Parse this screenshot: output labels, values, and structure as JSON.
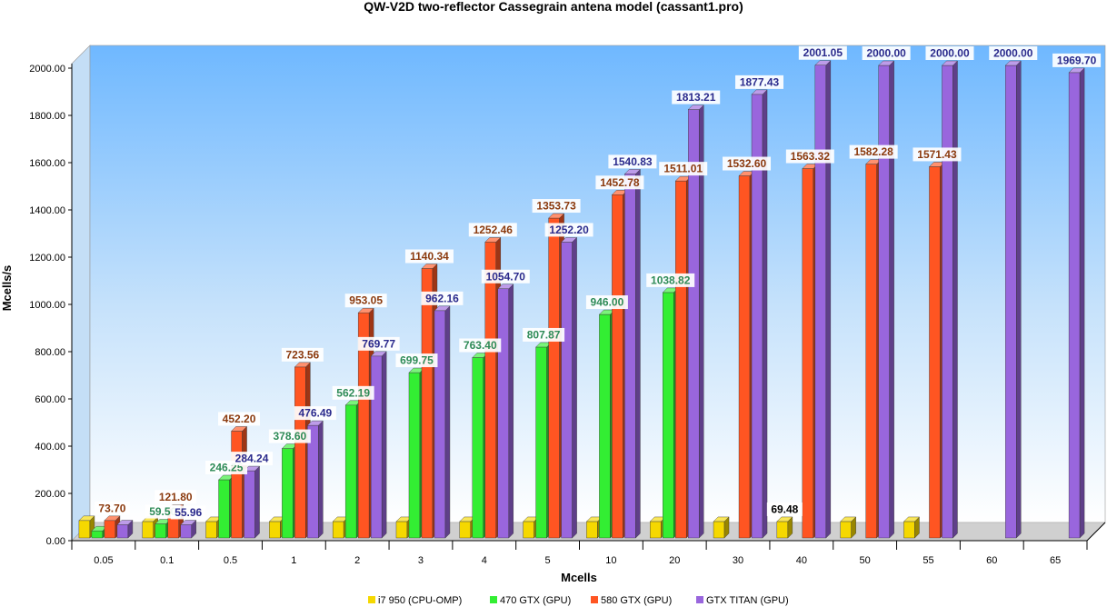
{
  "chart_data": {
    "type": "bar",
    "title": "QW-V2D two-reflector Cassegrain antena model (cassant1.pro)",
    "xlabel": "Mcells",
    "ylabel": "Mcells/s",
    "ylim": [
      0,
      2000
    ],
    "yticks": [
      "0.00",
      "200.00",
      "400.00",
      "600.00",
      "800.00",
      "1000.00",
      "1200.00",
      "1400.00",
      "1600.00",
      "1800.00",
      "2000.00"
    ],
    "categories": [
      "0.05",
      "0.1",
      "0.5",
      "1",
      "2",
      "3",
      "4",
      "5",
      "10",
      "20",
      "30",
      "40",
      "50",
      "55",
      "60",
      "65"
    ],
    "series": [
      {
        "name": "i7 950 (CPU-OMP)",
        "color": "#f5d800",
        "values": [
          73.7,
          69.48,
          69.48,
          69.48,
          69.48,
          69.48,
          69.48,
          69.48,
          69.48,
          69.48,
          69.48,
          69.48,
          69.48,
          69.48,
          null,
          null
        ],
        "labels": [
          null,
          null,
          null,
          null,
          null,
          null,
          null,
          null,
          null,
          null,
          null,
          "69.48",
          null,
          null,
          null,
          null
        ],
        "label_color": "#000000"
      },
      {
        "name": "470 GTX (GPU)",
        "color": "#33ee33",
        "values": [
          30.0,
          59.5,
          246.25,
          378.6,
          562.19,
          699.75,
          763.4,
          807.87,
          946.0,
          1038.82,
          null,
          null,
          null,
          null,
          null,
          null
        ],
        "labels": [
          null,
          "59.50",
          "246.25",
          "378.60",
          "562.19",
          "699.75",
          "763.40",
          "807.87",
          "946.00",
          "1038.82",
          null,
          null,
          null,
          null,
          null,
          null
        ],
        "label_color": "#2e8b57"
      },
      {
        "name": "580 GTX (GPU)",
        "color": "#ff5522",
        "values": [
          73.7,
          121.8,
          452.2,
          723.56,
          953.05,
          1140.34,
          1252.46,
          1353.73,
          1452.78,
          1511.01,
          1532.6,
          1563.32,
          1582.28,
          1571.43,
          null,
          null
        ],
        "labels": [
          "73.70",
          "121.80",
          "452.20",
          "723.56",
          "953.05",
          "1140.34",
          "1252.46",
          "1353.73",
          "1452.78",
          "1511.01",
          "1532.60",
          "1563.32",
          "1582.28",
          "1571.43",
          null,
          null
        ],
        "label_color": "#8b3a0e"
      },
      {
        "name": "GTX TITAN (GPU)",
        "color": "#9966dd",
        "values": [
          55.96,
          55.96,
          284.24,
          476.49,
          769.77,
          962.16,
          1054.7,
          1252.2,
          1540.83,
          1813.21,
          1877.43,
          2001.05,
          2000.0,
          2000.0,
          2000.0,
          1969.7
        ],
        "labels": [
          null,
          "55.96",
          "284.24",
          "476.49",
          "769.77",
          "962.16",
          "1054.70",
          "1252.20",
          "1540.83",
          "1813.21",
          "1877.43",
          "2001.05",
          "2000.00",
          "2000.00",
          "2000.00",
          "1969.70"
        ],
        "label_color": "#2a2a8c"
      }
    ],
    "legend_position": "bottom-center"
  }
}
